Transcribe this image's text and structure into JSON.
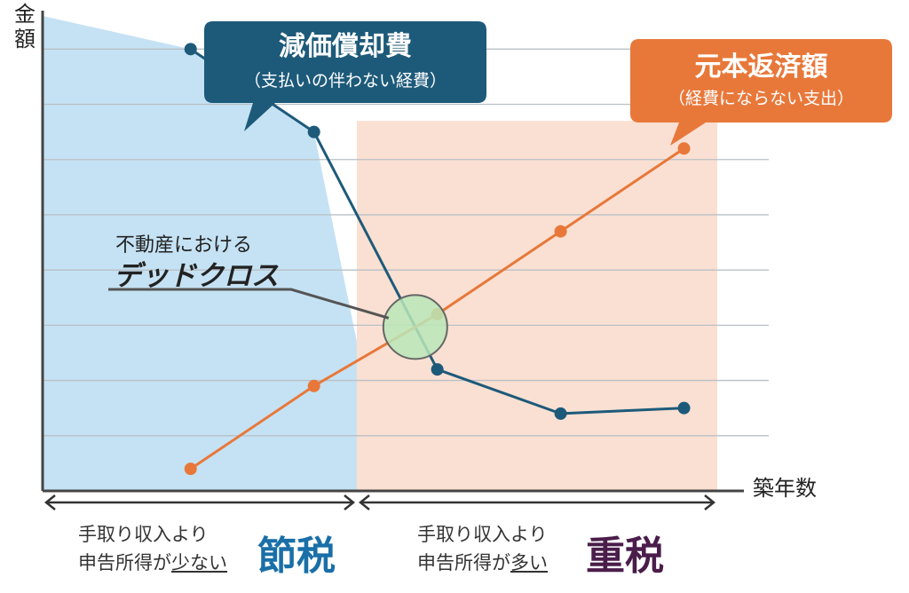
{
  "chart_data": {
    "type": "line",
    "ylabel": "金額",
    "xlabel": "築年数",
    "x": [
      1,
      2,
      3,
      4,
      5
    ],
    "series": [
      {
        "name": "減価償却費",
        "values": [
          8.0,
          6.5,
          2.2,
          1.4,
          1.5
        ],
        "color": "#1d5a7a"
      },
      {
        "name": "元本返済額",
        "values": [
          0.4,
          1.9,
          3.2,
          4.7,
          6.2
        ],
        "color": "#e8783a"
      }
    ],
    "xlim": [
      -0.2,
      5.5
    ],
    "ylim": [
      0,
      8.6
    ],
    "grid": "horizontal"
  },
  "callouts": {
    "depreciation": {
      "title": "減価償却費",
      "subtitle": "（支払いの伴わない経費）",
      "color": "#1d5a7a"
    },
    "repayment": {
      "title": "元本返済額",
      "subtitle": "（経費にならない支出）",
      "color": "#e8783a"
    }
  },
  "dead_cross": {
    "line1": "不動産における",
    "line2": "デッドクロス"
  },
  "regions": {
    "left": {
      "text_line1": "手取り収入より",
      "text_line2_prefix": "申告所得が",
      "text_line2_emph": "少ない",
      "badge": "節税",
      "badge_color": "#1a6fa8",
      "fill": "#c5e2f4"
    },
    "right": {
      "text_line1": "手取り収入より",
      "text_line2_prefix": "申告所得が",
      "text_line2_emph": "多い",
      "badge": "重税",
      "badge_color": "#4a1d4a",
      "fill": "#fae0d2"
    }
  }
}
